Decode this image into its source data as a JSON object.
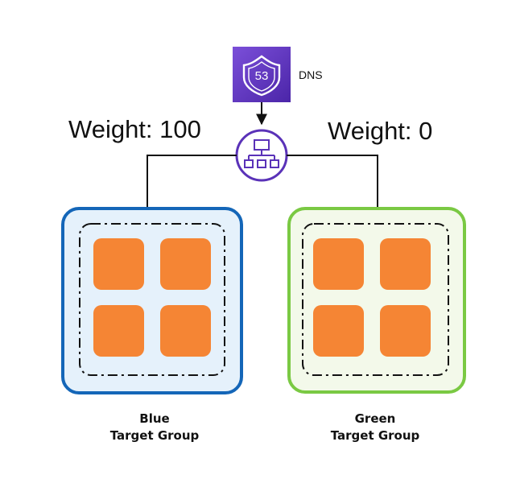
{
  "dns": {
    "badge_number": "53",
    "label": "DNS",
    "icon": "route53-shield-icon",
    "color": "#5a2fc2"
  },
  "load_balancer": {
    "icon": "load-balancer-hierarchy-icon",
    "color": "#5a32b8"
  },
  "weights": {
    "blue": "Weight: 100",
    "green": "Weight: 0"
  },
  "groups": {
    "blue": {
      "name": "Blue",
      "subtitle": "Target Group",
      "border_color": "#1466b8",
      "fill_color": "#e5f1fb",
      "instances": 4
    },
    "green": {
      "name": "Green",
      "subtitle": "Target Group",
      "border_color": "#7ac943",
      "fill_color": "#f3f9ea",
      "instances": 4
    }
  },
  "instance_color": "#f58534"
}
